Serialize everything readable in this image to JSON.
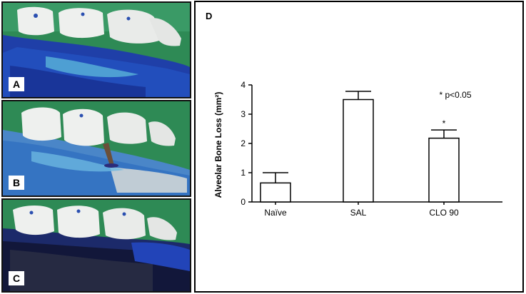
{
  "panels": {
    "a_label": "A",
    "b_label": "B",
    "c_label": "C",
    "d_label": "D"
  },
  "chart_data": {
    "type": "bar",
    "categories": [
      "Naïve",
      "SAL",
      "CLO 90"
    ],
    "values": [
      0.65,
      3.5,
      2.18
    ],
    "errors": [
      0.35,
      0.28,
      0.28
    ],
    "ylabel": "Alveolar Bone Loss (mm²)",
    "ylim": [
      0,
      4
    ],
    "yticks": [
      "0",
      "1",
      "2",
      "3",
      "4"
    ],
    "significance_marker": "*",
    "significance_on": "CLO 90",
    "annotation": "* p<0.05",
    "bar_fill": "#ffffff",
    "bar_stroke": "#000000",
    "grid": false
  },
  "colors": {
    "background_green": "#2e8a55",
    "stain_blue": "#1f3fa8",
    "tooth_white": "#eef0ee"
  }
}
